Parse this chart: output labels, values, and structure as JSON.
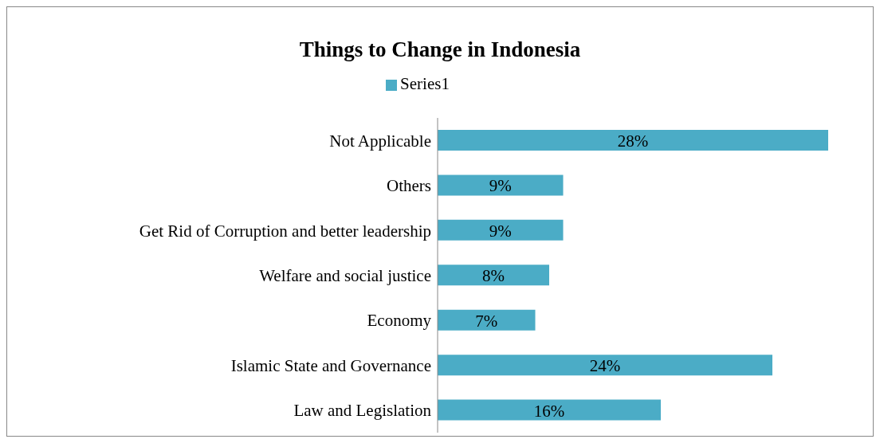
{
  "chart_data": {
    "type": "bar",
    "orientation": "horizontal",
    "title": "Things to Change in Indonesia",
    "categories": [
      "Not Applicable",
      "Others",
      "Get Rid of Corruption and better leadership",
      "Welfare and social justice",
      "Economy",
      "Islamic State and Governance",
      "Law and Legislation"
    ],
    "series": [
      {
        "name": "Series1",
        "color": "#4bacc6",
        "values": [
          28,
          9,
          9,
          8,
          7,
          24,
          16
        ],
        "value_labels": [
          "28%",
          "9%",
          "9%",
          "8%",
          "7%",
          "24%",
          "16%"
        ]
      }
    ],
    "legend": "top",
    "grid": false
  }
}
